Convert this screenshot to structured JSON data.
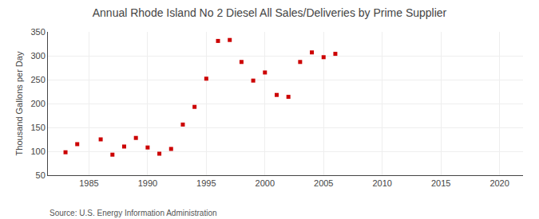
{
  "chart_data": {
    "type": "scatter",
    "title": "Annual Rhode Island No 2 Diesel All Sales/Deliveries by Prime Supplier",
    "y_label": "Thousand Gallons per Day",
    "annotations": [
      "Source: U.S. Energy Information Administration"
    ],
    "x": [
      1983,
      1984,
      1986,
      1987,
      1988,
      1989,
      1990,
      1991,
      1992,
      1993,
      1994,
      1995,
      1996,
      1997,
      1998,
      1999,
      2000,
      2001,
      2002,
      2003,
      2004,
      2005,
      2006
    ],
    "values": [
      98,
      115,
      125,
      93,
      110,
      128,
      108,
      95,
      105,
      156,
      193,
      252,
      331,
      333,
      287,
      248,
      265,
      218,
      214,
      287,
      307,
      297,
      304
    ],
    "color": "#cc0000",
    "marker": "square",
    "xlim": [
      1981.5,
      2022
    ],
    "xticks": [
      1985,
      1990,
      1995,
      2000,
      2005,
      2010,
      2015,
      2020
    ],
    "ylim": [
      50,
      350
    ],
    "yticks": [
      50,
      100,
      150,
      200,
      250,
      300,
      350
    ],
    "grid": true
  }
}
